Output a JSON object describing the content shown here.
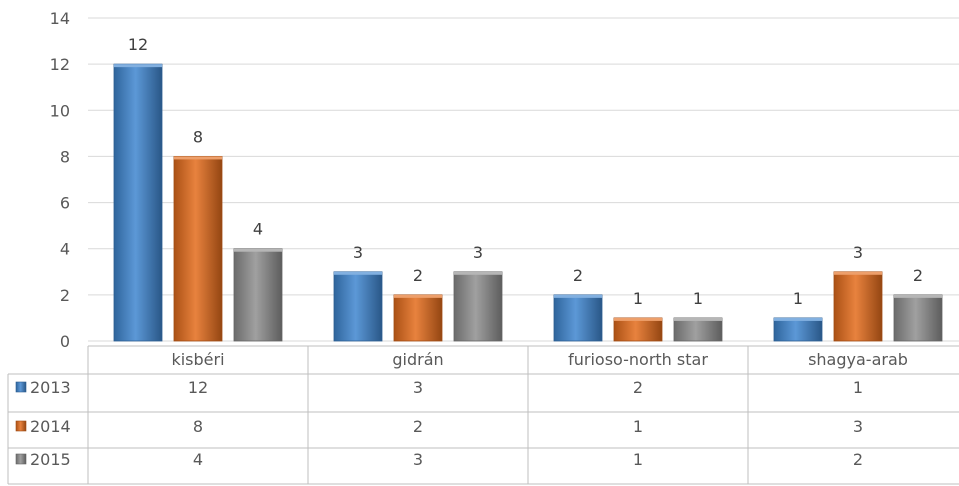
{
  "chart_data": {
    "type": "bar",
    "categories": [
      "kisbéri",
      "gidrán",
      "furioso-north star",
      "shagya-arab"
    ],
    "series": [
      {
        "name": "2013",
        "values": [
          12,
          3,
          2,
          1
        ],
        "color": "#3f86d0"
      },
      {
        "name": "2014",
        "values": [
          8,
          2,
          1,
          3
        ],
        "color": "#e46c1c"
      },
      {
        "name": "2015",
        "values": [
          4,
          3,
          1,
          2
        ],
        "color": "#8f8f8f"
      }
    ],
    "yticks": [
      0,
      2,
      4,
      6,
      8,
      10,
      12,
      14
    ],
    "ylim": [
      0,
      14
    ],
    "grid": true,
    "data_labels": true,
    "data_table": true
  }
}
